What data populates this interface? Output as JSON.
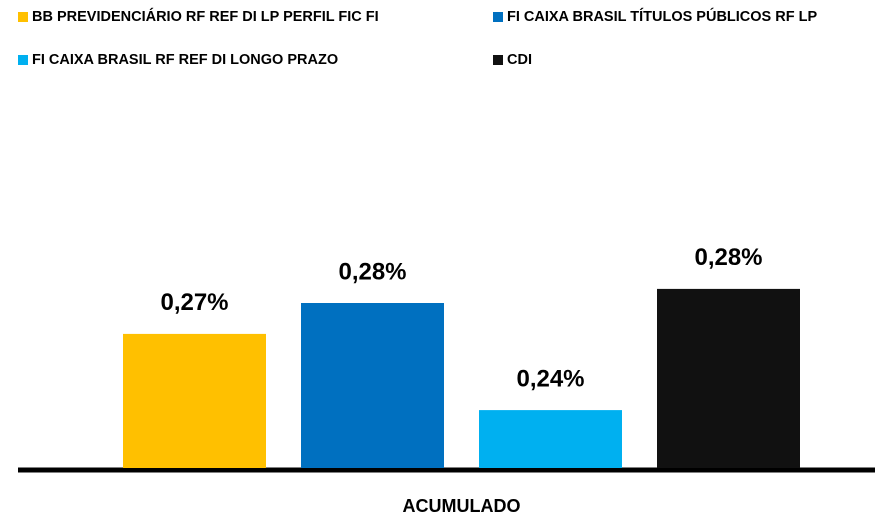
{
  "chart_data": {
    "type": "bar",
    "categories": [
      "ACUMULADO"
    ],
    "series": [
      {
        "name": "BB PREVIDENCIÁRIO RF REF DI LP PERFIL FIC FI",
        "color": "#FFC000",
        "values": [
          0.2697
        ],
        "value_labels": [
          "0,27%"
        ]
      },
      {
        "name": "FI CAIXA BRASIL TÍTULOS PÚBLICOS RF LP",
        "color": "#0070C0",
        "values": [
          0.28
        ],
        "value_labels": [
          "0,28%"
        ]
      },
      {
        "name": "FI CAIXA BRASIL RF REF DI LONGO PRAZO",
        "color": "#00B0F0",
        "values": [
          0.2443
        ],
        "value_labels": [
          "0,24%"
        ]
      },
      {
        "name": "CDI",
        "color": "#111111",
        "values": [
          0.2847
        ],
        "value_labels": [
          "0,28%"
        ]
      }
    ],
    "ylim": [
      0.225,
      0.305
    ],
    "legend": "top"
  }
}
